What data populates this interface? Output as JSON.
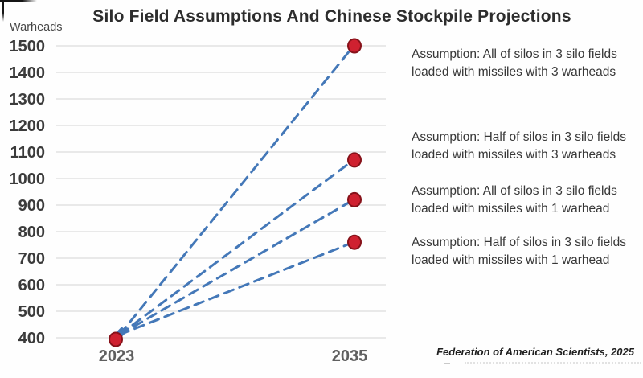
{
  "title": "Silo Field Assumptions And Chinese Stockpile Projections",
  "y_axis_label": "Warheads",
  "attribution": "Federation of American Scientists, 2025",
  "annotations": [
    {
      "line1": "Assumption: All of silos in 3 silo fields",
      "line2": "loaded with missiles with 3 warheads"
    },
    {
      "line1": "Assumption: Half of silos in 3 silo fields",
      "line2": "loaded with missiles with 3 warheads"
    },
    {
      "line1": "Assumption: All of silos in 3 silo fields",
      "line2": "loaded with missiles with 1 warhead"
    },
    {
      "line1": "Assumption: Half of silos in 3 silo fields",
      "line2": "loaded with missiles with 1 warhead"
    }
  ],
  "chart_data": {
    "type": "line",
    "x_categories": [
      "2023",
      "2035"
    ],
    "series": [
      {
        "name": "All of silos in 3 silo fields loaded with missiles with 3 warheads",
        "values": [
          400,
          1500
        ]
      },
      {
        "name": "Half of silos in 3 silo fields loaded with missiles with 3 warheads",
        "values": [
          400,
          1070
        ]
      },
      {
        "name": "All of silos in 3 silo fields loaded with missiles with 1 warhead",
        "values": [
          400,
          920
        ]
      },
      {
        "name": "Half of silos in 3 silo fields loaded with missiles with 1 warhead",
        "values": [
          400,
          760
        ]
      }
    ],
    "y_ticks": [
      400,
      500,
      600,
      700,
      800,
      900,
      1000,
      1100,
      1200,
      1300,
      1400,
      1500
    ],
    "ylim": [
      400,
      1500
    ],
    "grid": true,
    "legend_position": "none",
    "line_style": "dashed",
    "colors": {
      "line": "#4478b8",
      "marker_fill": "#cf2130",
      "marker_edge": "#87121a",
      "grid": "#e2e2e2",
      "tick_text": "#3b3b3b",
      "x_label_text": "#5f5f5f"
    }
  }
}
